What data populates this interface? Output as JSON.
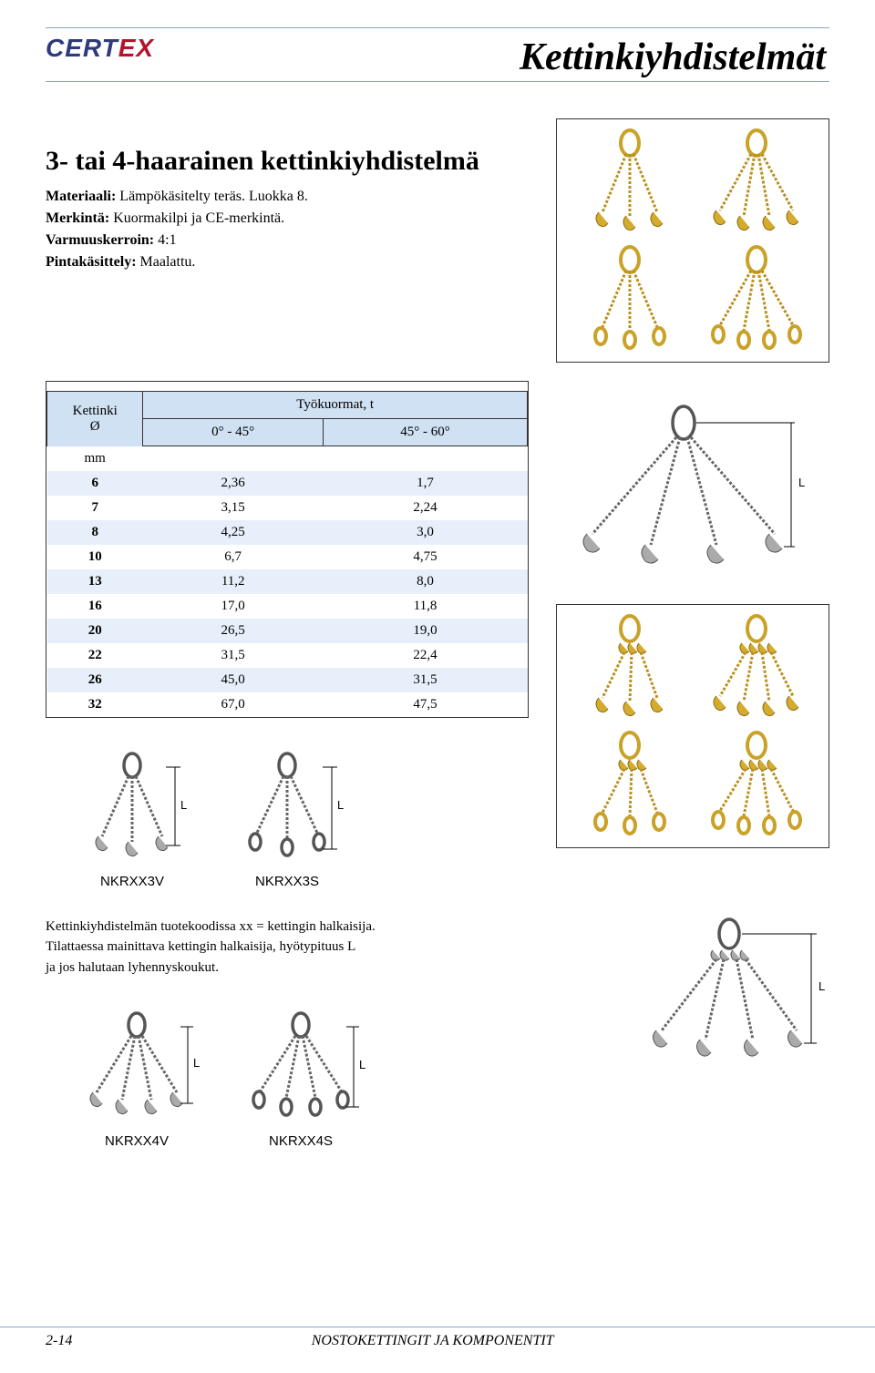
{
  "brand": {
    "part1": "CERT",
    "part2": "EX"
  },
  "banner_title": "Kettinkiyhdistelmät",
  "section_title": "3- tai 4-haarainen kettinkiyhdistelmä",
  "specs": {
    "material_label": "Materiaali:",
    "material_value": "Lämpökäsitelty teräs. Luokka 8.",
    "marking_label": "Merkintä:",
    "marking_value": "Kuormakilpi ja CE-merkintä.",
    "safety_label": "Varmuuskerroin:",
    "safety_value": "4:1",
    "finish_label": "Pintakäsittely:",
    "finish_value": "Maalattu."
  },
  "table": {
    "header_chain": "Kettinki",
    "header_diam": "Ø",
    "header_loads": "Työkuormat, t",
    "header_col1": "0° - 45°",
    "header_col2": "45° - 60°",
    "unit": "mm",
    "rows": [
      {
        "d": "6",
        "a": "2,36",
        "b": "1,7"
      },
      {
        "d": "7",
        "a": "3,15",
        "b": "2,24"
      },
      {
        "d": "8",
        "a": "4,25",
        "b": "3,0"
      },
      {
        "d": "10",
        "a": "6,7",
        "b": "4,75"
      },
      {
        "d": "13",
        "a": "11,2",
        "b": "8,0"
      },
      {
        "d": "16",
        "a": "17,0",
        "b": "11,8"
      },
      {
        "d": "20",
        "a": "26,5",
        "b": "19,0"
      },
      {
        "d": "22",
        "a": "31,5",
        "b": "22,4"
      },
      {
        "d": "26",
        "a": "45,0",
        "b": "31,5"
      },
      {
        "d": "32",
        "a": "67,0",
        "b": "47,5"
      }
    ],
    "alt_rows": [
      0,
      2,
      4,
      6,
      8
    ],
    "header_bg": "#cfe1f3",
    "alt_bg": "#e7f0fa"
  },
  "dim_label": "L",
  "codes": {
    "nkrxx3v": "NKRXX3V",
    "nkrxx3s": "NKRXX3S",
    "nkrxx4v": "NKRXX4V",
    "nkrxx4s": "NKRXX4S"
  },
  "hint": {
    "line1": "Kettinkiyhdistelmän tuotekoodissa xx = kettingin halkaisija.",
    "line2": "Tilattaessa mainittava kettingin halkaisija, hyötypituus L",
    "line3": "ja jos halutaan lyhennyskoukut."
  },
  "footer": {
    "page": "2-14",
    "text": "NOSTOKETTINGIT JA KOMPONENTIT"
  },
  "colors": {
    "banner_rule": "#8aa3c8",
    "gold": "#c9a227",
    "gold_fill": "#d5ab2e",
    "gray_chain": "#666666"
  }
}
